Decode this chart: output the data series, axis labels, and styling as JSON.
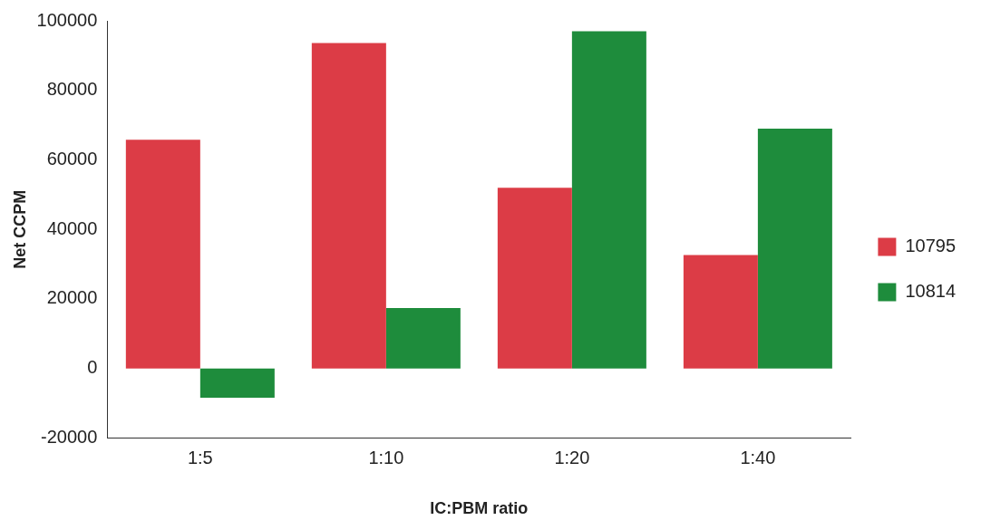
{
  "chart_data": {
    "type": "bar",
    "xlabel": "IC:PBM ratio",
    "ylabel": "Net CCPM",
    "categories": [
      "1:5",
      "1:10",
      "1:20",
      "1:40"
    ],
    "series": [
      {
        "name": "10795",
        "color": "#dc3c46",
        "values": [
          65800,
          93600,
          52000,
          32600
        ]
      },
      {
        "name": "10814",
        "color": "#1e8c3c",
        "values": [
          -8400,
          17400,
          97000,
          69000
        ]
      }
    ],
    "ylim": [
      -20000,
      100000
    ],
    "yticks": [
      -20000,
      0,
      20000,
      40000,
      60000,
      80000,
      100000
    ],
    "grid": false,
    "legend": "right"
  }
}
